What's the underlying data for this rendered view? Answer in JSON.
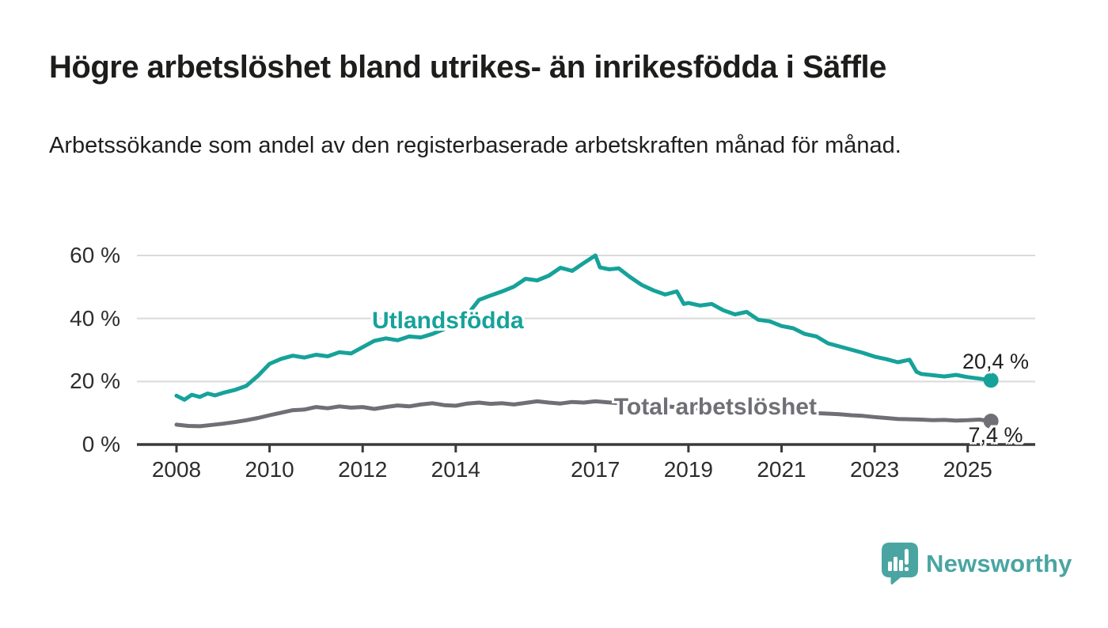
{
  "chart_data": {
    "type": "line",
    "title": "Högre arbetslöshet bland utrikes- än inrikesfödda i Säffle",
    "subtitle": "Arbetssökande som andel av den registerbaserade arbetskraften månad för månad.",
    "grid": true,
    "legend_position": "inline-labels",
    "x_axis": {
      "ticks": [
        2008,
        2010,
        2012,
        2014,
        2017,
        2019,
        2021,
        2023,
        2025
      ],
      "range": [
        2007.15,
        2026.45
      ]
    },
    "y_axis": {
      "ticks": [
        0,
        20,
        40,
        60
      ],
      "suffix": " %",
      "range": [
        0,
        60
      ]
    },
    "series": [
      {
        "name": "Utlandsfödda",
        "color": "#16a29a",
        "end_value_label": "20,4 %",
        "end_value": 20.4,
        "inline_label": {
          "text": "Utlandsfödda",
          "x": 2012.2,
          "y": 39.2
        },
        "end_annotation": {
          "x": 2025.6,
          "y": 26.4
        },
        "points": [
          [
            2008.0,
            15.5
          ],
          [
            2008.17,
            14.2
          ],
          [
            2008.33,
            15.8
          ],
          [
            2008.5,
            15.1
          ],
          [
            2008.67,
            16.2
          ],
          [
            2008.83,
            15.6
          ],
          [
            2009.0,
            16.4
          ],
          [
            2009.25,
            17.3
          ],
          [
            2009.5,
            18.6
          ],
          [
            2009.75,
            21.8
          ],
          [
            2010.0,
            25.6
          ],
          [
            2010.25,
            27.2
          ],
          [
            2010.5,
            28.2
          ],
          [
            2010.75,
            27.6
          ],
          [
            2011.0,
            28.5
          ],
          [
            2011.25,
            28.0
          ],
          [
            2011.5,
            29.3
          ],
          [
            2011.75,
            28.9
          ],
          [
            2012.0,
            30.9
          ],
          [
            2012.25,
            32.9
          ],
          [
            2012.5,
            33.7
          ],
          [
            2012.75,
            33.1
          ],
          [
            2013.0,
            34.3
          ],
          [
            2013.25,
            34.0
          ],
          [
            2013.5,
            35.1
          ],
          [
            2013.75,
            36.6
          ],
          [
            2014.0,
            38.1
          ],
          [
            2014.25,
            41.2
          ],
          [
            2014.5,
            45.9
          ],
          [
            2014.75,
            47.3
          ],
          [
            2015.0,
            48.6
          ],
          [
            2015.25,
            50.1
          ],
          [
            2015.5,
            52.6
          ],
          [
            2015.75,
            52.1
          ],
          [
            2016.0,
            53.6
          ],
          [
            2016.25,
            56.1
          ],
          [
            2016.5,
            55.1
          ],
          [
            2016.75,
            57.6
          ],
          [
            2017.0,
            60.0
          ],
          [
            2017.1,
            56.2
          ],
          [
            2017.3,
            55.6
          ],
          [
            2017.5,
            55.9
          ],
          [
            2017.75,
            53.1
          ],
          [
            2018.0,
            50.6
          ],
          [
            2018.25,
            48.9
          ],
          [
            2018.5,
            47.6
          ],
          [
            2018.75,
            48.6
          ],
          [
            2018.9,
            44.6
          ],
          [
            2019.0,
            44.9
          ],
          [
            2019.25,
            44.1
          ],
          [
            2019.5,
            44.6
          ],
          [
            2019.75,
            42.6
          ],
          [
            2020.0,
            41.3
          ],
          [
            2020.25,
            42.1
          ],
          [
            2020.5,
            39.6
          ],
          [
            2020.75,
            39.1
          ],
          [
            2021.0,
            37.6
          ],
          [
            2021.25,
            36.9
          ],
          [
            2021.5,
            35.1
          ],
          [
            2021.75,
            34.3
          ],
          [
            2022.0,
            32.1
          ],
          [
            2022.25,
            31.1
          ],
          [
            2022.5,
            30.1
          ],
          [
            2022.75,
            29.1
          ],
          [
            2023.0,
            27.9
          ],
          [
            2023.25,
            27.1
          ],
          [
            2023.5,
            26.1
          ],
          [
            2023.75,
            26.9
          ],
          [
            2023.9,
            23.1
          ],
          [
            2024.0,
            22.4
          ],
          [
            2024.25,
            22.0
          ],
          [
            2024.5,
            21.6
          ],
          [
            2024.75,
            22.1
          ],
          [
            2025.0,
            21.4
          ],
          [
            2025.25,
            20.9
          ],
          [
            2025.5,
            20.4
          ]
        ]
      },
      {
        "name": "Total arbetslöshet",
        "color": "#6f6f75",
        "end_value_label": "7,4 %",
        "end_value": 7.4,
        "inline_label": {
          "text": "Total arbetslöshet",
          "x": 2017.4,
          "y": 11.8
        },
        "end_annotation": {
          "x": 2025.6,
          "y": 3.1
        },
        "points": [
          [
            2008.0,
            6.3
          ],
          [
            2008.25,
            5.9
          ],
          [
            2008.5,
            5.8
          ],
          [
            2008.75,
            6.2
          ],
          [
            2009.0,
            6.6
          ],
          [
            2009.25,
            7.1
          ],
          [
            2009.5,
            7.7
          ],
          [
            2009.75,
            8.4
          ],
          [
            2010.0,
            9.3
          ],
          [
            2010.25,
            10.1
          ],
          [
            2010.5,
            10.9
          ],
          [
            2010.75,
            11.1
          ],
          [
            2011.0,
            11.9
          ],
          [
            2011.25,
            11.5
          ],
          [
            2011.5,
            12.1
          ],
          [
            2011.75,
            11.7
          ],
          [
            2012.0,
            11.9
          ],
          [
            2012.25,
            11.3
          ],
          [
            2012.5,
            11.9
          ],
          [
            2012.75,
            12.4
          ],
          [
            2013.0,
            12.1
          ],
          [
            2013.25,
            12.7
          ],
          [
            2013.5,
            13.1
          ],
          [
            2013.75,
            12.5
          ],
          [
            2014.0,
            12.3
          ],
          [
            2014.25,
            13.0
          ],
          [
            2014.5,
            13.3
          ],
          [
            2014.75,
            12.9
          ],
          [
            2015.0,
            13.1
          ],
          [
            2015.25,
            12.7
          ],
          [
            2015.5,
            13.2
          ],
          [
            2015.75,
            13.7
          ],
          [
            2016.0,
            13.3
          ],
          [
            2016.25,
            13.0
          ],
          [
            2016.5,
            13.5
          ],
          [
            2016.75,
            13.3
          ],
          [
            2017.0,
            13.7
          ],
          [
            2017.25,
            13.4
          ],
          [
            2017.5,
            13.1
          ],
          [
            2017.75,
            12.8
          ],
          [
            2018.0,
            12.6
          ],
          [
            2018.5,
            12.1
          ],
          [
            2019.0,
            11.6
          ],
          [
            2019.5,
            11.3
          ],
          [
            2020.0,
            11.0
          ],
          [
            2020.5,
            10.7
          ],
          [
            2021.0,
            10.4
          ],
          [
            2021.5,
            10.1
          ],
          [
            2022.0,
            9.8
          ],
          [
            2022.25,
            9.6
          ],
          [
            2022.5,
            9.3
          ],
          [
            2022.75,
            9.1
          ],
          [
            2023.0,
            8.7
          ],
          [
            2023.25,
            8.4
          ],
          [
            2023.5,
            8.1
          ],
          [
            2023.75,
            8.0
          ],
          [
            2024.0,
            7.9
          ],
          [
            2024.25,
            7.7
          ],
          [
            2024.5,
            7.8
          ],
          [
            2024.75,
            7.6
          ],
          [
            2025.0,
            7.7
          ],
          [
            2025.25,
            7.9
          ],
          [
            2025.5,
            7.4
          ]
        ]
      }
    ]
  },
  "colors": {
    "accent_teal": "#16a29a",
    "neutral_gray": "#6f6f75",
    "grid": "#dadada",
    "axis": "#3a3a3a",
    "text": "#1d1d1b",
    "logo_teal": "#4aa5a2"
  },
  "branding": {
    "logo_text": "Newsworthy",
    "logo_icon": "chart-speech-bubble-icon"
  }
}
